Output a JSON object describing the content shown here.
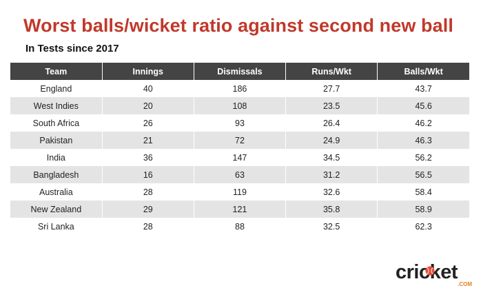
{
  "chart_data": {
    "type": "table",
    "title": "Worst balls/wicket ratio against second new ball",
    "subtitle": "In Tests since 2017",
    "columns": [
      "Team",
      "Innings",
      "Dismissals",
      "Runs/Wkt",
      "Balls/Wkt"
    ],
    "rows": [
      [
        "England",
        "40",
        "186",
        "27.7",
        "43.7"
      ],
      [
        "West Indies",
        "20",
        "108",
        "23.5",
        "45.6"
      ],
      [
        "South Africa",
        "26",
        "93",
        "26.4",
        "46.2"
      ],
      [
        "Pakistan",
        "21",
        "72",
        "24.9",
        "46.3"
      ],
      [
        "India",
        "36",
        "147",
        "34.5",
        "56.2"
      ],
      [
        "Bangladesh",
        "16",
        "63",
        "31.2",
        "56.5"
      ],
      [
        "Australia",
        "28",
        "119",
        "32.6",
        "58.4"
      ],
      [
        "New Zealand",
        "29",
        "121",
        "35.8",
        "58.9"
      ],
      [
        "Sri Lanka",
        "28",
        "88",
        "32.5",
        "62.3"
      ]
    ]
  },
  "logo": {
    "word": "cricket",
    "suffix": ".COM",
    "icon": "cricket-ball-icon"
  },
  "colors": {
    "title": "#c0392b",
    "header_bg": "#444444",
    "row_alt": "#e4e4e4",
    "logo_accent": "#e67e22"
  }
}
